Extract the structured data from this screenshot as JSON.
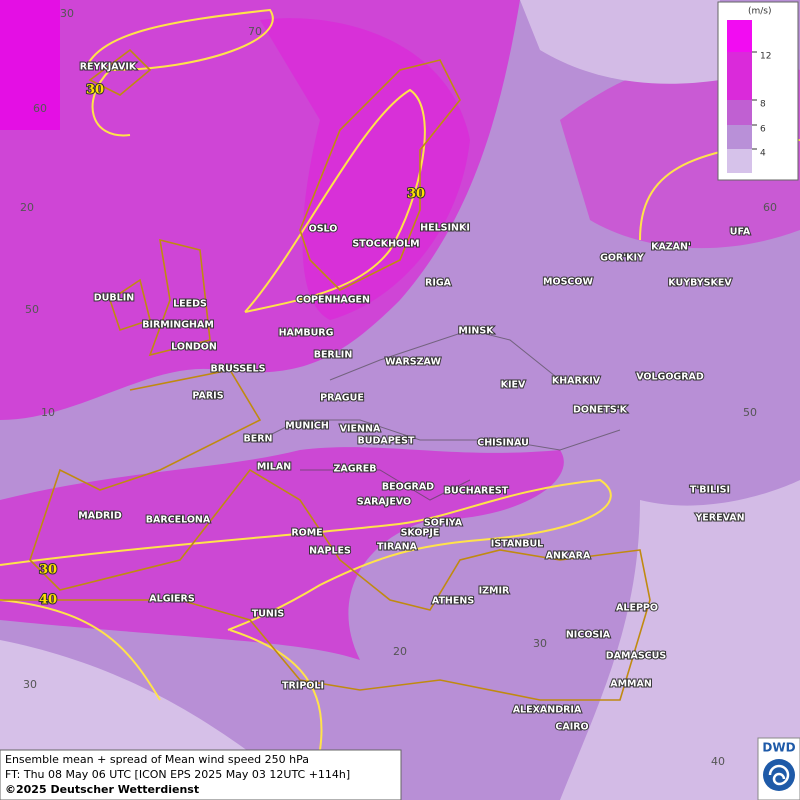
{
  "legend": {
    "unit": "(m/s)",
    "ticks": [
      12,
      8,
      6,
      4
    ]
  },
  "cities": [
    "REYKJAVIK",
    "OSLO",
    "STOCKHOLM",
    "HELSINKI",
    "DUBLIN",
    "LEEDS",
    "BIRMINGHAM",
    "LONDON",
    "COPENHAGEN",
    "HAMBURG",
    "BERLIN",
    "RIGA",
    "MOSCOW",
    "GOR'KIY",
    "KAZAN'",
    "UFA",
    "KUYBYSKEV",
    "MINSK",
    "WARSZAW",
    "KIEV",
    "KHARKIV",
    "VOLGOGRAD",
    "BRUSSELS",
    "PARIS",
    "PRAGUE",
    "DONETS'K",
    "MUNICH",
    "VIENNA",
    "BERN",
    "BUDAPEST",
    "CHISINAU",
    "MILAN",
    "ZAGREB",
    "BEOGRAD",
    "BUCHAREST",
    "T'BILISI",
    "MADRID",
    "BARCELONA",
    "SARAJEVO",
    "SOFIYA",
    "YEREVAN",
    "ROME",
    "SKOPJE",
    "TIRANA",
    "ISTANBUL",
    "NAPLES",
    "ANKARA",
    "ALGIERS",
    "IZMIR",
    "ATHENS",
    "ALEPPO",
    "TUNIS",
    "NICOSIA",
    "DAMASCUS",
    "AMMAN",
    "TRIPOLI",
    "ALEXANDRIA",
    "CAIRO"
  ],
  "grid_labels": [
    30,
    70,
    60,
    20,
    50,
    10,
    30,
    20,
    30,
    40,
    50,
    60
  ],
  "contour_labels": [
    30,
    30,
    30,
    40
  ],
  "caption": {
    "line1": "Ensemble mean + spread of Mean wind speed 250 hPa",
    "line2": "FT: Thu 08 May 06 UTC [ICON EPS 2025 May 03 12UTC +114h]",
    "copyright": "©2025 Deutscher Wetterdienst"
  },
  "logo": "DWD"
}
